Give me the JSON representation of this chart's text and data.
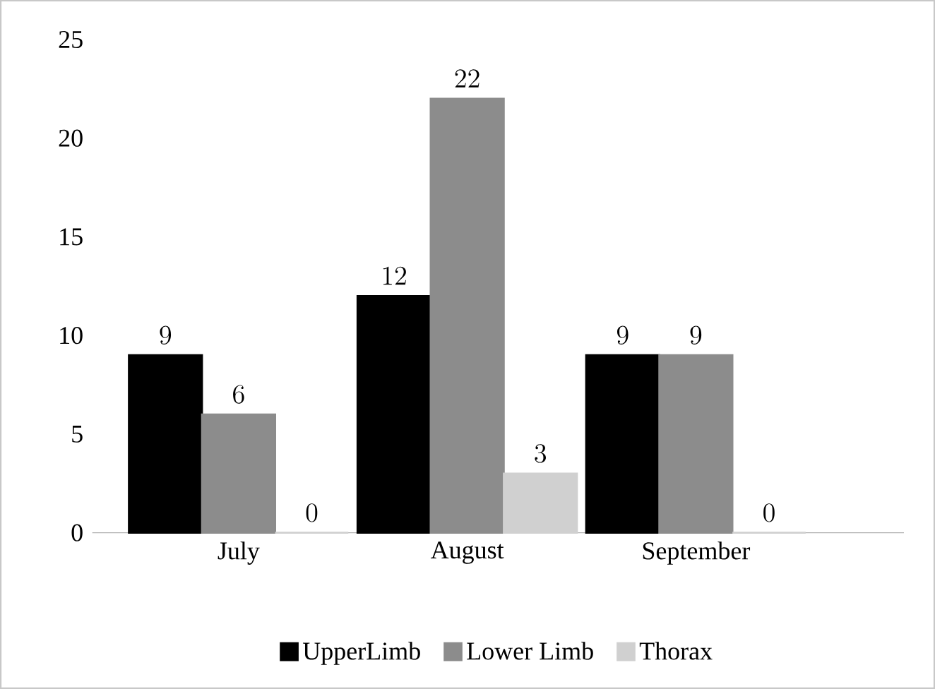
{
  "chart_data": {
    "type": "bar",
    "categories": [
      "July",
      "August",
      "September"
    ],
    "series": [
      {
        "name": "UpperLimb",
        "color": "#000000",
        "values": [
          9,
          12,
          9
        ]
      },
      {
        "name": "Lower Limb",
        "color": "#8c8c8c",
        "values": [
          6,
          22,
          9
        ]
      },
      {
        "name": "Thorax",
        "color": "#d0d0d0",
        "values": [
          0,
          3,
          0
        ]
      }
    ],
    "ylim": [
      0,
      25
    ],
    "yticks": [
      0,
      5,
      10,
      15,
      20,
      25
    ],
    "data_labels": true,
    "legend": "bottom",
    "grid": false
  }
}
